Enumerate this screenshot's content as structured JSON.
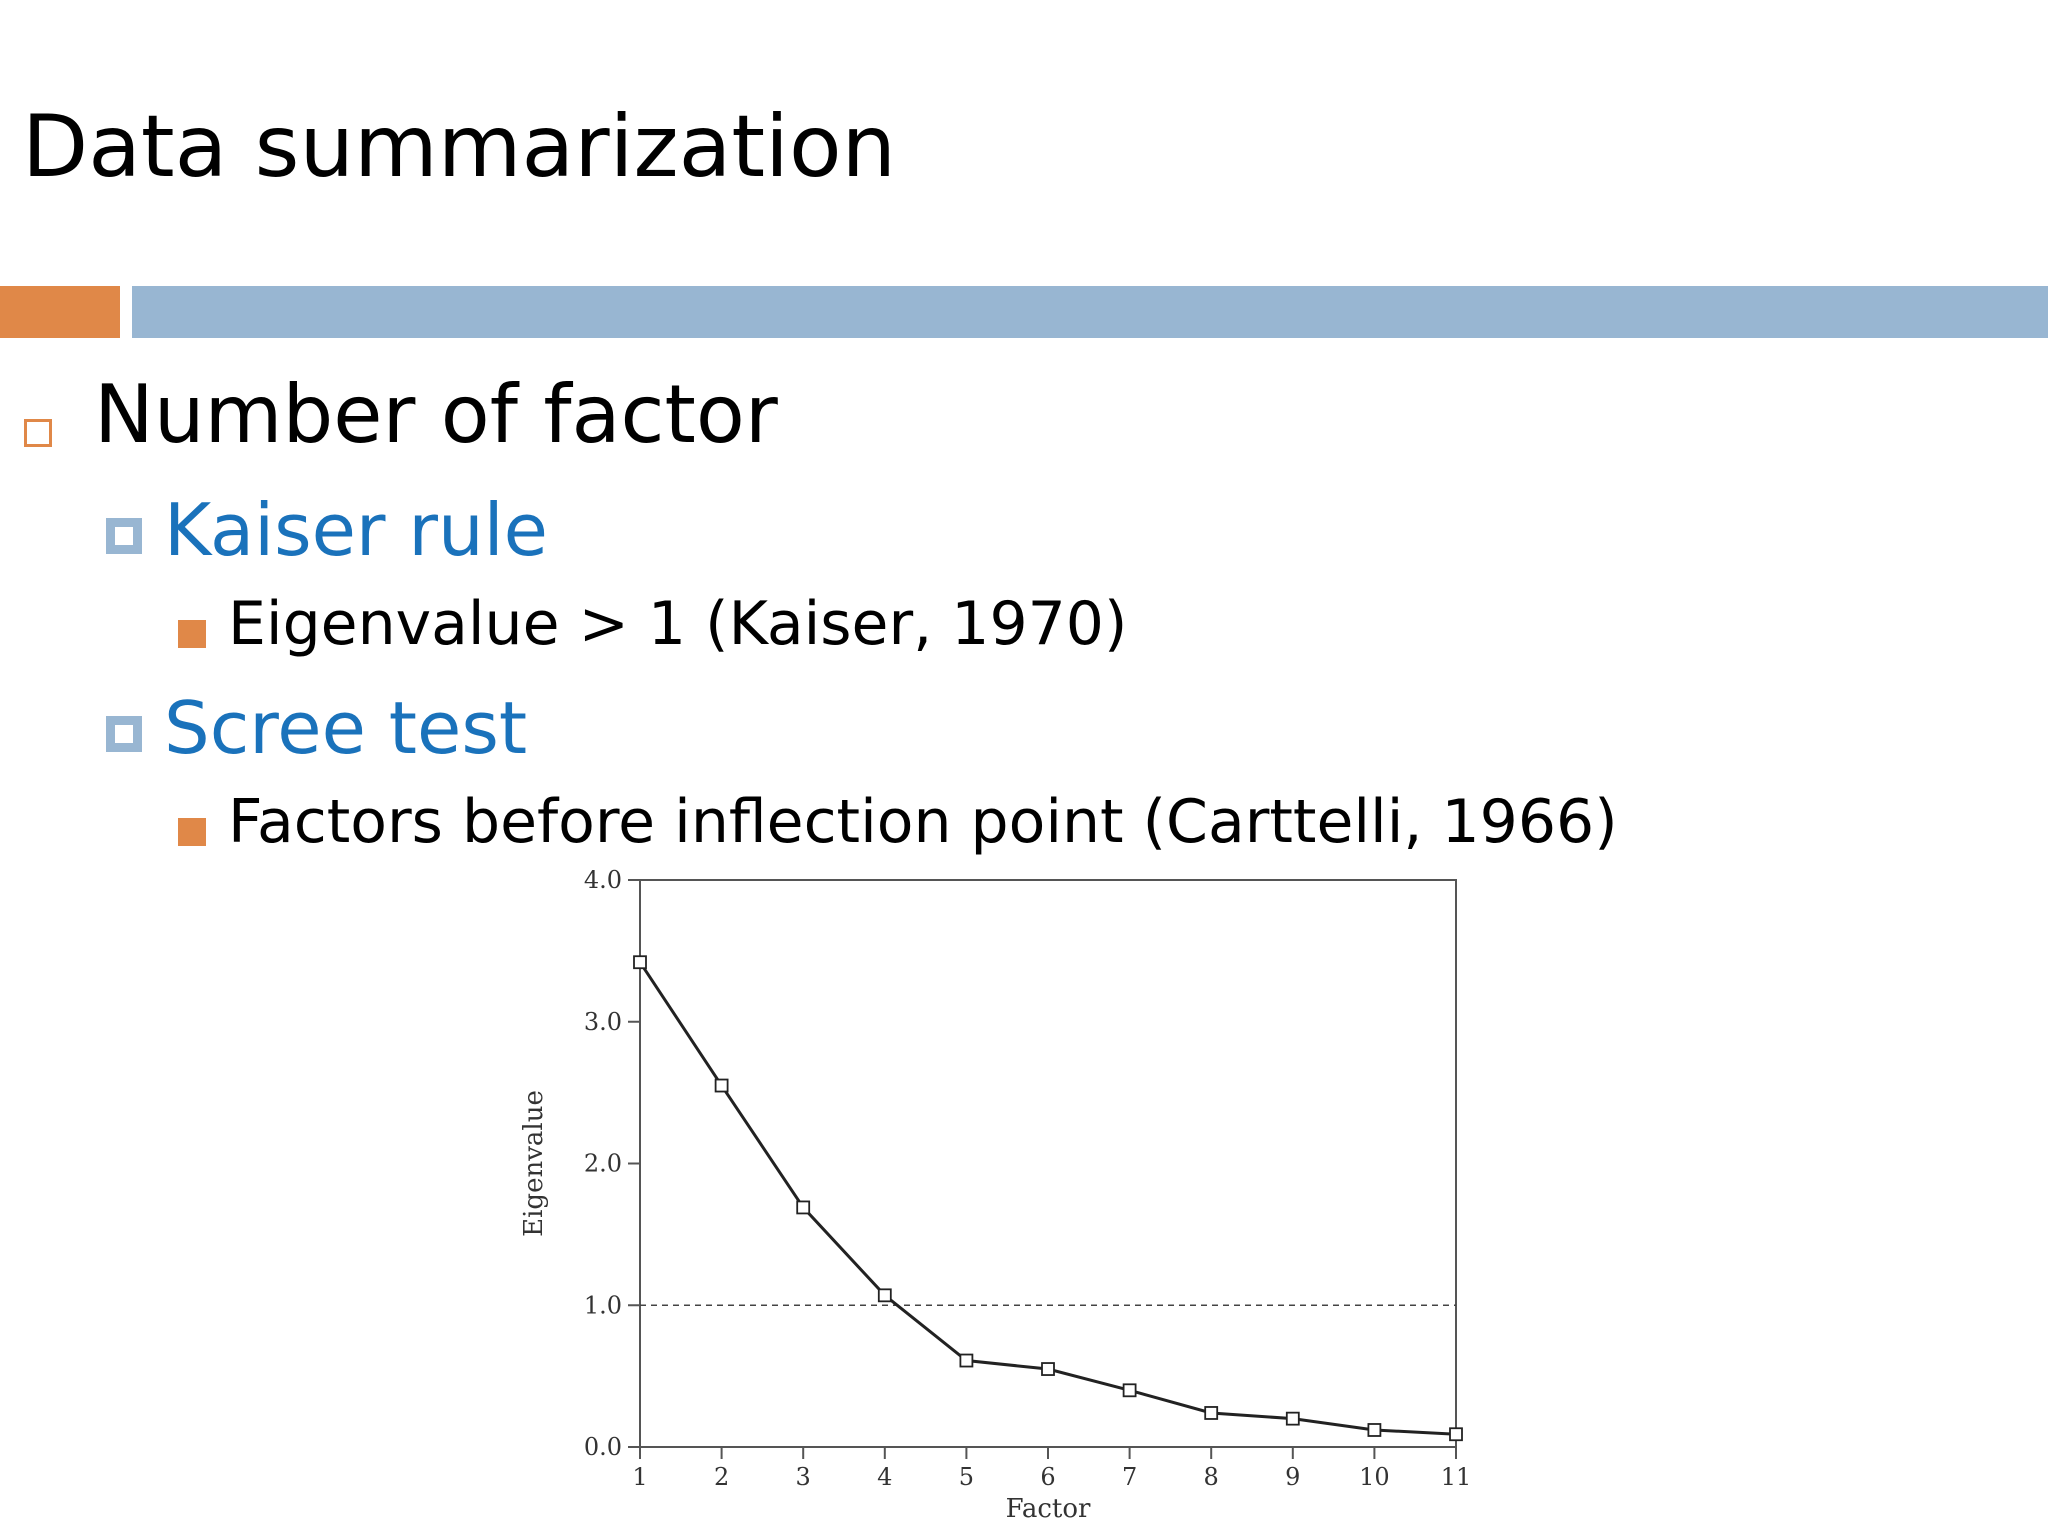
{
  "slide": {
    "title": "Data summarization",
    "bullets": {
      "number_of_factor": "Number of factor",
      "kaiser_rule": "Kaiser rule",
      "eigenvalue_rule": "Eigenvalue > 1 (Kaiser, 1970)",
      "scree_test": "Scree test",
      "inflection_rule": "Factors before inflection point (Carttelli, 1966)"
    },
    "colors": {
      "accent_orange": "#E08848",
      "accent_blue": "#98B6D2",
      "subheading_blue": "#1A72BB"
    }
  },
  "chart_data": {
    "type": "line",
    "title": "",
    "xlabel": "Factor",
    "ylabel": "Eigenvalue",
    "x": [
      1,
      2,
      3,
      4,
      5,
      6,
      7,
      8,
      9,
      10,
      11
    ],
    "series": [
      {
        "values": [
          3.42,
          2.55,
          1.69,
          1.07,
          0.61,
          0.55,
          0.4,
          0.24,
          0.2,
          0.12,
          0.09
        ],
        "marker": "open-square"
      }
    ],
    "reference_line": {
      "y": 1.0,
      "style": "dashed"
    },
    "xlim": [
      1,
      11
    ],
    "ylim": [
      0,
      4
    ],
    "xticks": [
      "1",
      "2",
      "3",
      "4",
      "5",
      "6",
      "7",
      "8",
      "9",
      "10",
      "11"
    ],
    "yticks": [
      "0.0",
      "1.0",
      "2.0",
      "3.0",
      "4.0"
    ],
    "grid": false,
    "legend": "none"
  }
}
